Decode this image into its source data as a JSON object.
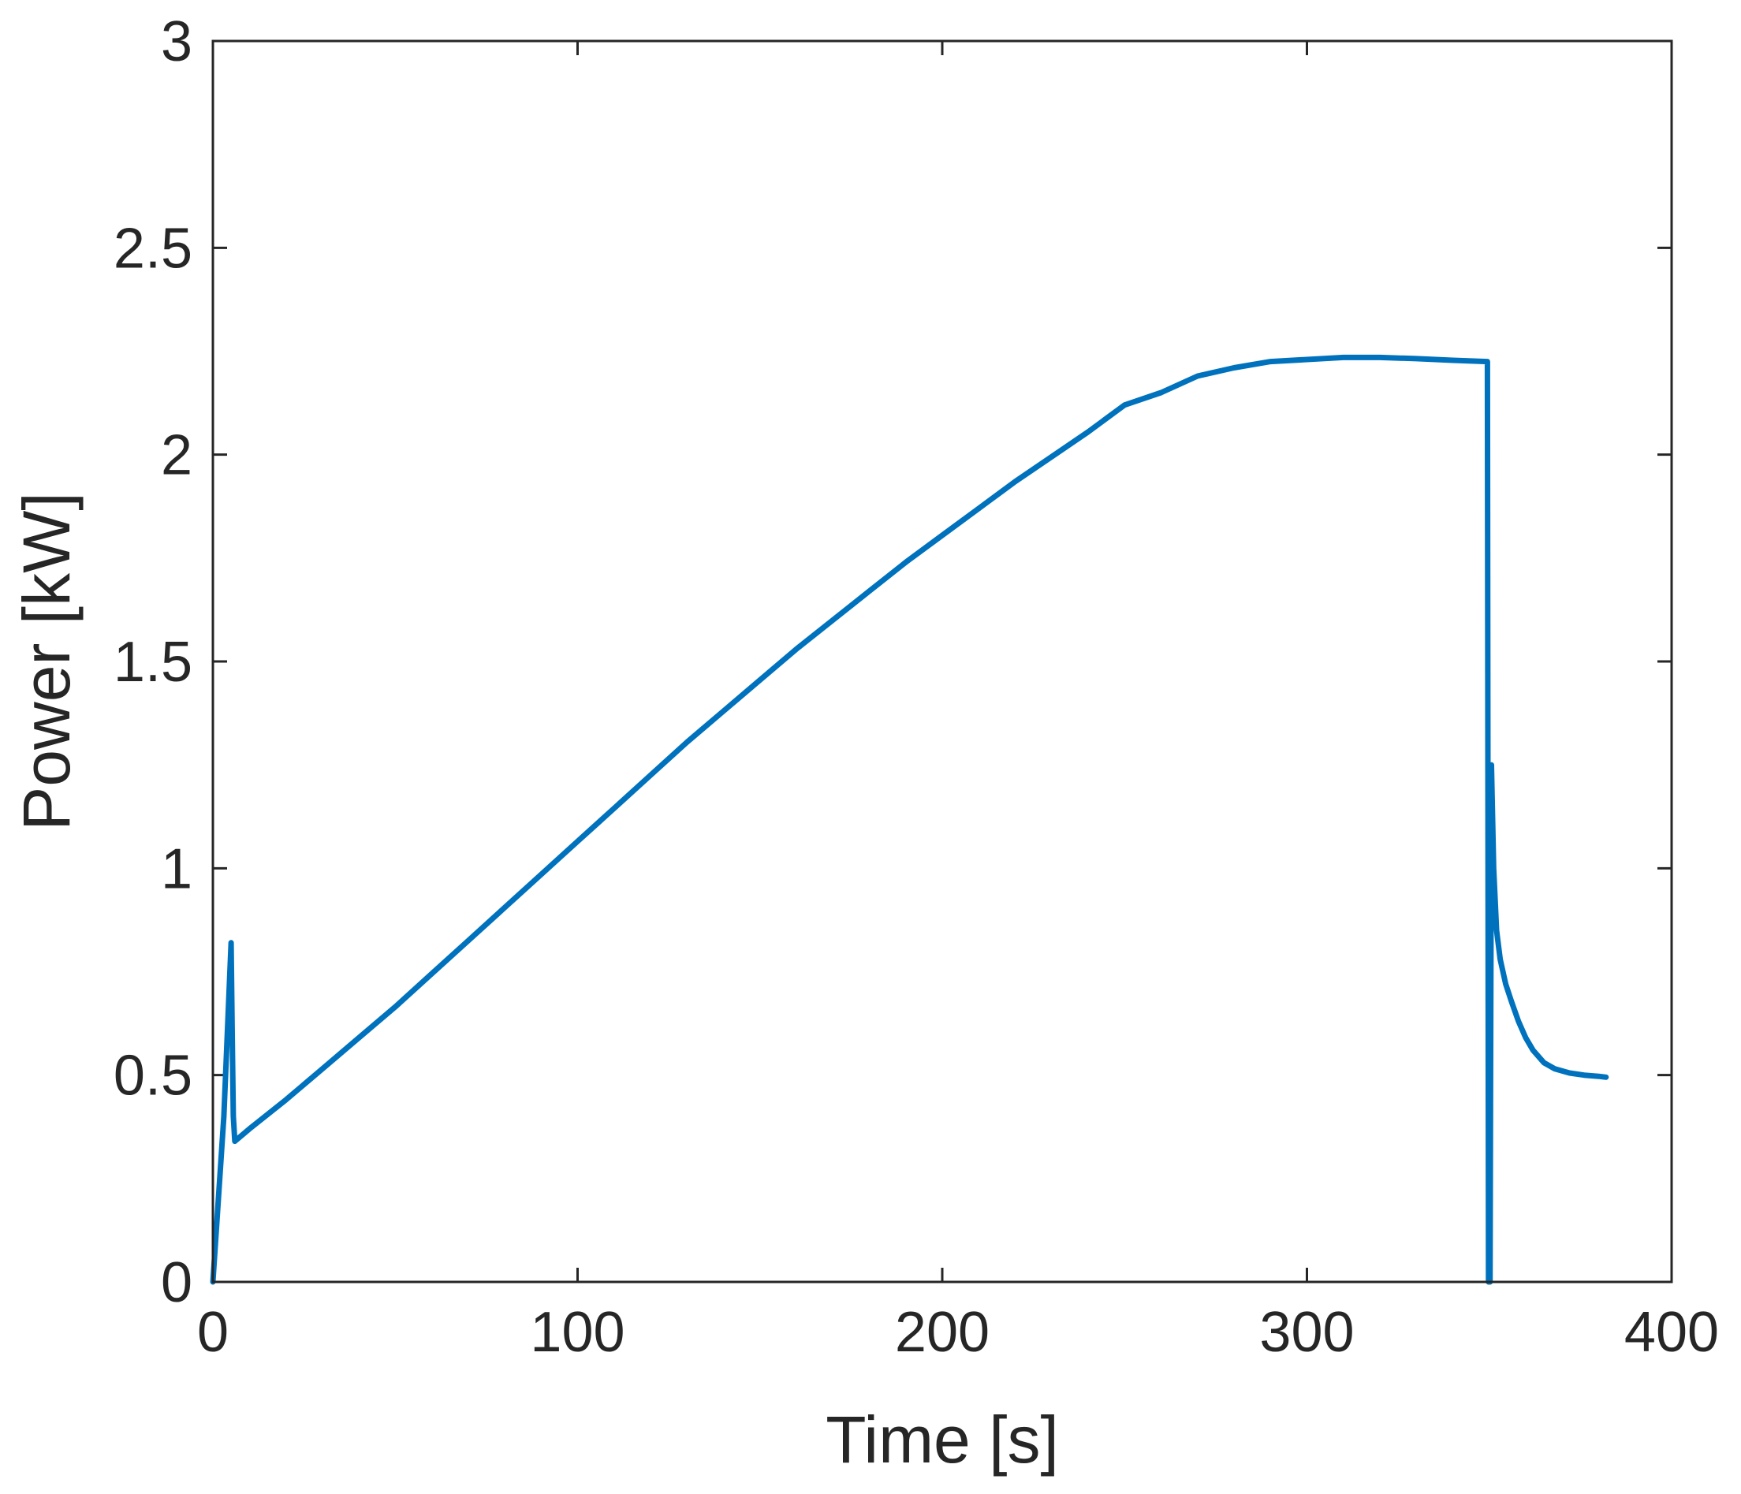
{
  "chart_data": {
    "type": "line",
    "title": "",
    "xlabel": "Time [s]",
    "ylabel": "Power [kW]",
    "xlim": [
      0,
      400
    ],
    "ylim": [
      0,
      3
    ],
    "xticks": [
      0,
      100,
      200,
      300,
      400
    ],
    "xtick_labels": [
      "0",
      "100",
      "200",
      "300",
      "400"
    ],
    "yticks": [
      0,
      0.5,
      1,
      1.5,
      2,
      2.5,
      3
    ],
    "ytick_labels": [
      "0",
      "0.5",
      "1",
      "1.5",
      "2",
      "2.5",
      "3"
    ],
    "grid": false,
    "legend": "none",
    "series": [
      {
        "color": "#0072BD",
        "x": [
          0,
          3,
          5,
          5.3,
          5.6,
          6,
          10,
          20,
          30,
          40,
          50,
          60,
          70,
          80,
          90,
          100,
          110,
          120,
          130,
          140,
          150,
          160,
          170,
          180,
          190,
          200,
          210,
          220,
          230,
          240,
          250,
          260,
          270,
          280,
          290,
          300,
          310,
          320,
          330,
          340,
          349.5,
          349.8,
          350.2,
          350.6,
          351.2,
          352,
          353,
          354.5,
          356,
          358,
          360,
          362,
          365,
          368,
          372,
          376,
          380,
          382
        ],
        "y": [
          0,
          0.4,
          0.82,
          0.6,
          0.4,
          0.34,
          0.37,
          0.44,
          0.515,
          0.59,
          0.665,
          0.745,
          0.825,
          0.905,
          0.985,
          1.065,
          1.145,
          1.225,
          1.305,
          1.38,
          1.455,
          1.53,
          1.6,
          1.67,
          1.74,
          1.805,
          1.87,
          1.935,
          1.995,
          2.055,
          2.12,
          2.15,
          2.19,
          2.21,
          2.225,
          2.23,
          2.235,
          2.235,
          2.232,
          2.228,
          2.225,
          0,
          0,
          1.25,
          1.0,
          0.85,
          0.78,
          0.72,
          0.68,
          0.63,
          0.59,
          0.56,
          0.53,
          0.515,
          0.505,
          0.5,
          0.497,
          0.495
        ]
      }
    ]
  }
}
